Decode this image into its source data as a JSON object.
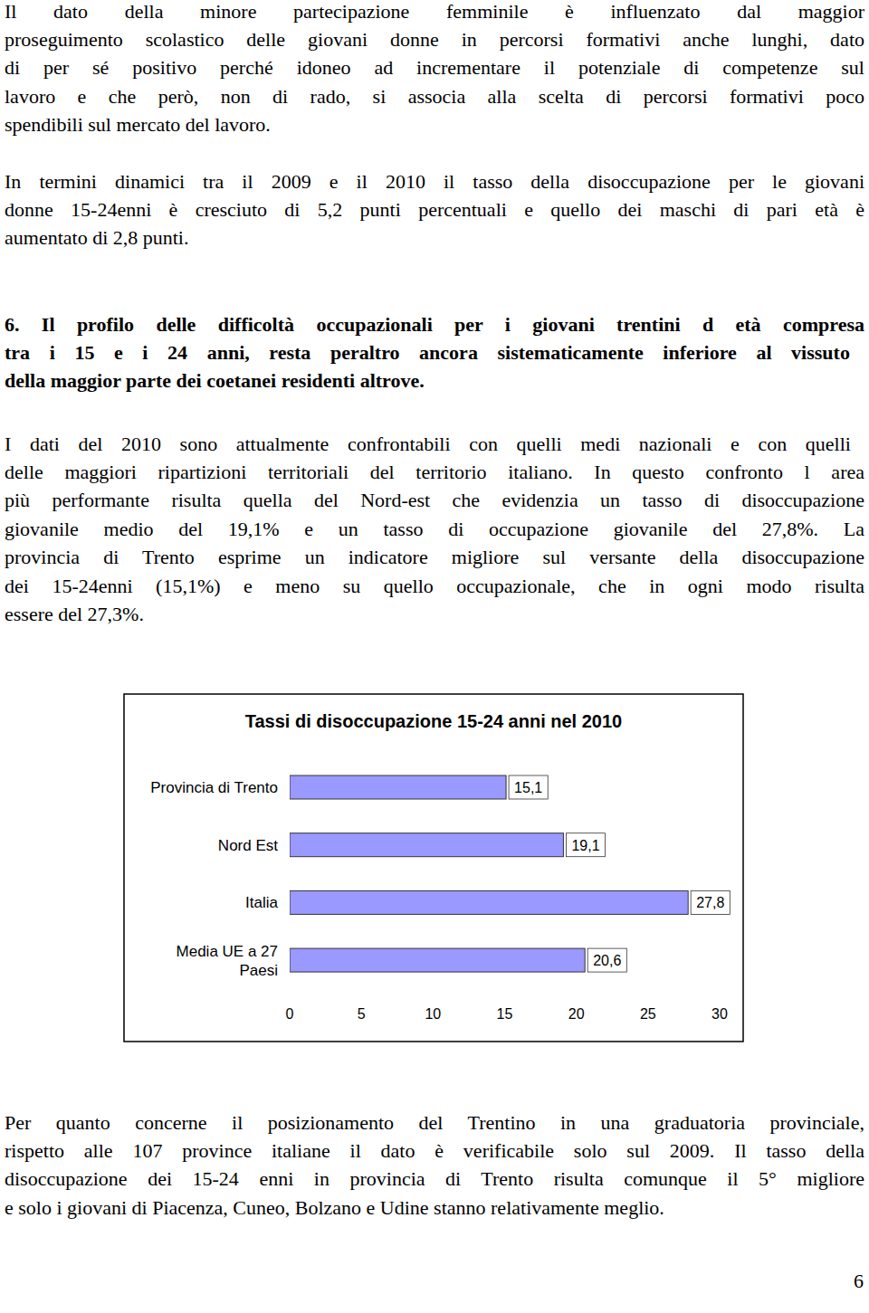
{
  "paragraphs": [
    {
      "lines": [
        "Il dato della minore partecipazione femminile è influenzato dal maggior",
        "proseguimento scolastico delle giovani donne in percorsi formativi anche lunghi, dato",
        "di per sé positivo perché idoneo ad incrementare il potenziale di competenze sul",
        "lavoro e che però, non di rado, si associa alla scelta di percorsi formativi poco",
        "spendibili sul mercato del lavoro."
      ]
    },
    {
      "lines": [
        "In termini dinamici tra il 2009 e il 2010 il tasso della disoccupazione per le giovani",
        "donne 15-24enni è cresciuto di 5,2 punti percentuali e quello dei maschi di pari età è",
        "aumentato di 2,8 punti."
      ]
    }
  ],
  "heading": {
    "lines": [
      "6. Il profilo delle difficoltà occupazionali per i giovani trentini d età compresa",
      "tra i 15 e i 24 anni, resta peraltro ancora sistematicamente inferiore  al vissuto",
      "della maggior parte dei coetanei residenti altrove."
    ]
  },
  "body": [
    {
      "lines": [
        "I dati del 2010 sono attualmente confrontabili con  quelli medi nazionali e con quelli",
        "delle maggiori ripartizioni territoriali del territorio italiano. In questo confronto l area",
        "più performante risulta quella del Nord-est che evidenzia un tasso di disoccupazione",
        "giovanile medio del 19,1% e un tasso di occupazione giovanile del 27,8%. La",
        "provincia di Trento esprime un indicatore migliore sul versante della disoccupazione",
        "dei 15-24enni (15,1%) e meno su quello occupazionale, che in ogni modo risulta",
        "essere del 27,3%."
      ]
    }
  ],
  "chart_data": {
    "type": "bar",
    "orientation": "horizontal",
    "title": "Tassi di disoccupazione 15-24 anni nel 2010",
    "categories": [
      "Provincia di Trento",
      "Nord Est",
      "Italia",
      "Media UE a 27 Paesi"
    ],
    "values": [
      15.1,
      19.1,
      27.8,
      20.6
    ],
    "value_labels": [
      "15,1",
      "19,1",
      "27,8",
      "20,6"
    ],
    "data_labels": true,
    "color": "#9999ff",
    "xlim": [
      0,
      30
    ],
    "xticks": [
      0,
      5,
      10,
      15,
      20,
      25,
      30
    ],
    "grid": false
  },
  "closing": [
    {
      "lines": [
        "Per quanto concerne il posizionamento del Trentino in una graduatoria provinciale,",
        "rispetto alle 107 province italiane il dato è verificabile solo sul 2009. Il tasso della",
        "disoccupazione dei 15-24 enni in provincia di Trento risulta comunque il 5° migliore",
        "e solo i giovani di Piacenza, Cuneo, Bolzano e Udine stanno relativamente meglio."
      ]
    }
  ],
  "page_number": "6"
}
